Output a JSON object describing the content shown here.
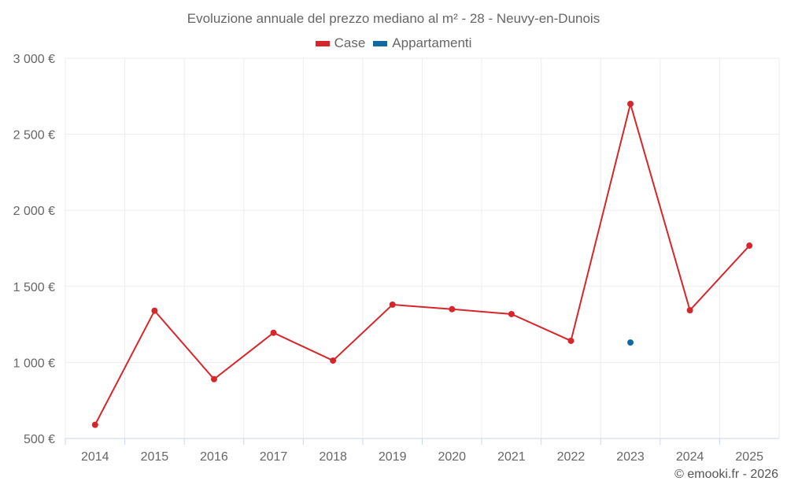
{
  "chart_data": {
    "type": "line",
    "title": "Evoluzione annuale del prezzo mediano al m² - 28 - Neuvy-en-Dunois",
    "xlabel": "",
    "ylabel": "",
    "categories": [
      "2014",
      "2015",
      "2016",
      "2017",
      "2018",
      "2019",
      "2020",
      "2021",
      "2022",
      "2023",
      "2024",
      "2025"
    ],
    "ylim": [
      500,
      3000
    ],
    "yticks": [
      500,
      1000,
      1500,
      2000,
      2500,
      3000
    ],
    "ytick_labels": [
      "500 €",
      "1 000 €",
      "1 500 €",
      "2 000 €",
      "2 500 €",
      "3 000 €"
    ],
    "grid": true,
    "legend_position": "top-center",
    "series": [
      {
        "name": "Case",
        "color": "#d7262b",
        "values": [
          590,
          1340,
          890,
          1195,
          1012,
          1380,
          1350,
          1318,
          1142,
          2700,
          1343,
          1768
        ]
      },
      {
        "name": "Appartamenti",
        "color": "#0f6aa3",
        "values": [
          null,
          null,
          null,
          null,
          null,
          null,
          null,
          null,
          null,
          1131,
          null,
          null
        ]
      }
    ]
  },
  "credit": "© emooki.fr - 2026"
}
